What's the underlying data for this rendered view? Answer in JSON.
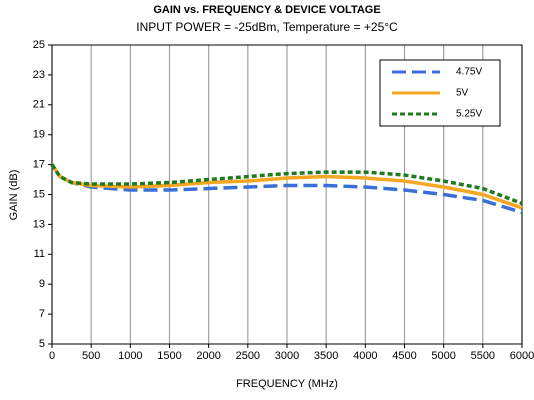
{
  "chart_data": {
    "type": "line",
    "title": "GAIN vs. FREQUENCY & DEVICE VOLTAGE",
    "subtitle": "INPUT POWER = -25dBm, Temperature = +25°C",
    "xlabel": "FREQUENCY (MHz)",
    "ylabel": "GAIN (dB)",
    "x": [
      0,
      100,
      250,
      500,
      1000,
      1500,
      2000,
      2500,
      3000,
      3500,
      4000,
      4500,
      5000,
      5500,
      6000
    ],
    "series": [
      {
        "name": "4.75V",
        "color": "#3a6fd8",
        "style": "dashed",
        "values": [
          17,
          16.2,
          15.8,
          15.5,
          15.3,
          15.3,
          15.4,
          15.5,
          15.6,
          15.6,
          15.5,
          15.3,
          15.0,
          14.6,
          13.8
        ]
      },
      {
        "name": "5V",
        "color": "#f5a623",
        "style": "solid",
        "values": [
          17,
          16.2,
          15.8,
          15.6,
          15.5,
          15.6,
          15.8,
          15.9,
          16.1,
          16.2,
          16.1,
          15.9,
          15.5,
          15.0,
          14.1
        ]
      },
      {
        "name": "5.25V",
        "color": "#1e7a1e",
        "style": "dotted",
        "values": [
          17,
          16.2,
          15.8,
          15.7,
          15.7,
          15.8,
          16.0,
          16.2,
          16.4,
          16.5,
          16.5,
          16.3,
          15.9,
          15.4,
          14.4
        ]
      }
    ],
    "xlim": [
      0,
      6000
    ],
    "xticks": [
      0,
      500,
      1000,
      1500,
      2000,
      2500,
      3000,
      3500,
      4000,
      4500,
      5000,
      5500,
      6000
    ],
    "ylim": [
      5,
      25
    ],
    "yticks": [
      5,
      7,
      9,
      11,
      13,
      15,
      17,
      19,
      21,
      23,
      25
    ],
    "xgrid": true,
    "legend": "upper right"
  }
}
